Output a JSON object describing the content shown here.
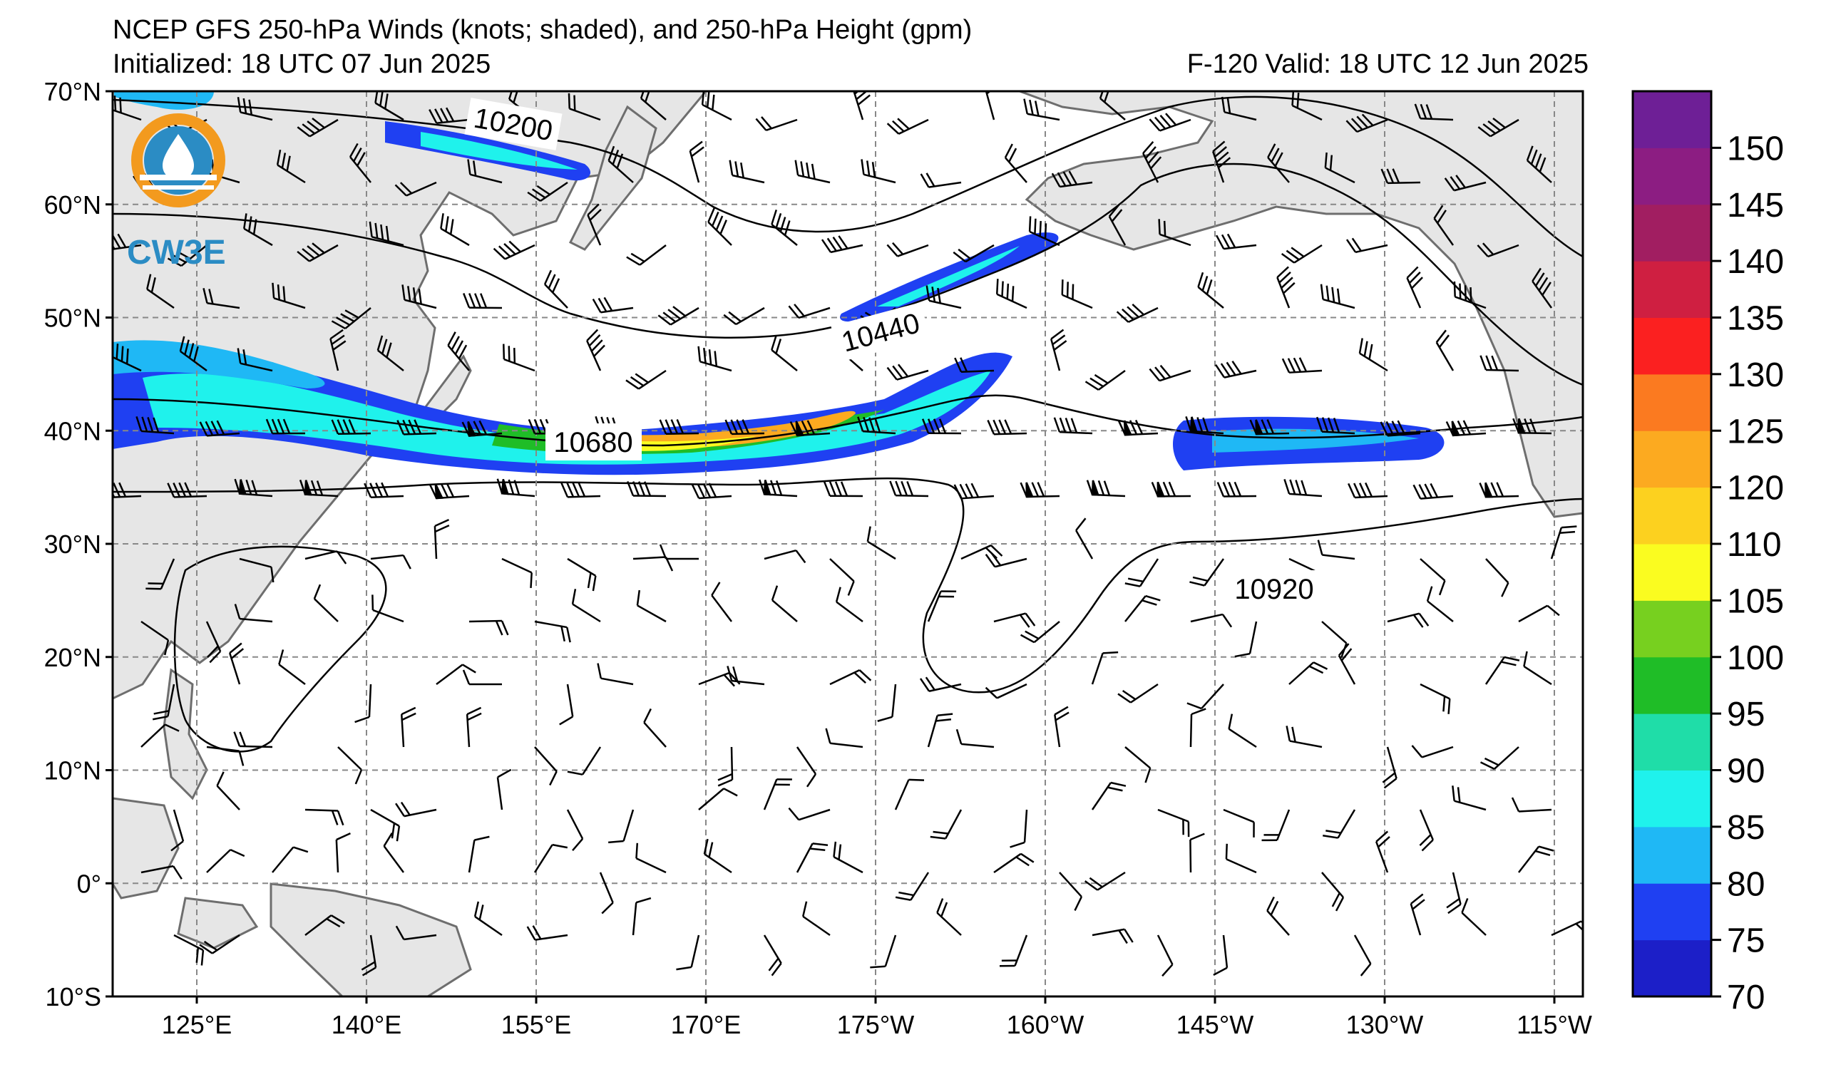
{
  "header": {
    "title": "NCEP GFS 250-hPa Winds (knots; shaded), and 250-hPa Height (gpm)",
    "initialized": "Initialized: 18 UTC 07 Jun 2025",
    "valid": "F-120  Valid: 18 UTC 12 Jun 2025"
  },
  "logo": {
    "text": "CW3E",
    "colors": {
      "orange": "#f39a1e",
      "blue": "#2b8cc4"
    }
  },
  "map": {
    "lat_labels": [
      "70°N",
      "60°N",
      "50°N",
      "40°N",
      "30°N",
      "20°N",
      "10°N",
      "0°",
      "10°S"
    ],
    "lon_labels": [
      "125°E",
      "140°E",
      "155°E",
      "170°E",
      "175°W",
      "160°W",
      "145°W",
      "130°W",
      "115°W"
    ],
    "contour_labels": [
      "10200",
      "10440",
      "10680",
      "10920"
    ],
    "land_color": "#e6e6e6",
    "coast_color": "#6e6e6e"
  },
  "colorbar": {
    "units": "knots",
    "levels": [
      70,
      75,
      80,
      85,
      90,
      95,
      100,
      105,
      110,
      120,
      125,
      130,
      135,
      140,
      145,
      150
    ],
    "labels": [
      "70",
      "75",
      "80",
      "85",
      "90",
      "95",
      "100",
      "105",
      "110",
      "120",
      "125",
      "130",
      "135",
      "140",
      "145",
      "150"
    ],
    "colors": [
      "#1c1fc8",
      "#1f40f2",
      "#1fb8f5",
      "#1ff2ec",
      "#1fdda8",
      "#1fbd27",
      "#77d01f",
      "#fafc20",
      "#fcd11f",
      "#fcaa20",
      "#fb7a20",
      "#fb2020",
      "#cf1f41",
      "#a11e61",
      "#8c1d82",
      "#6e1f96"
    ]
  }
}
